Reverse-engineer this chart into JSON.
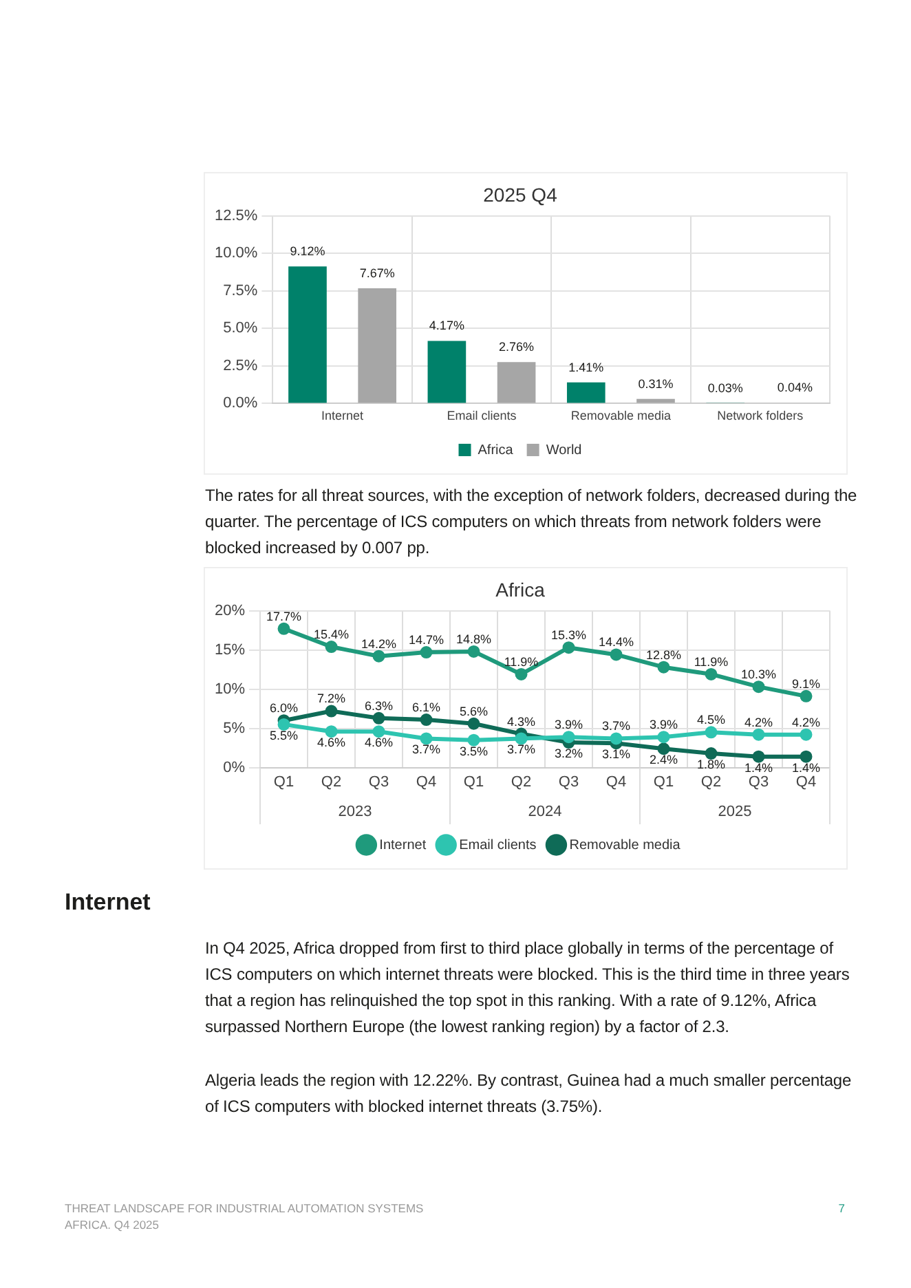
{
  "chart_data": [
    {
      "type": "bar",
      "title": "2025 Q4",
      "categories": [
        "Internet",
        "Email clients",
        "Removable media",
        "Network folders"
      ],
      "series": [
        {
          "name": "Africa",
          "color": "#00816a",
          "values": [
            9.12,
            4.17,
            1.41,
            0.03
          ],
          "value_labels": [
            "9.12%",
            "4.17%",
            "1.41%",
            "0.03%"
          ]
        },
        {
          "name": "World",
          "color": "#a6a6a6",
          "values": [
            7.67,
            2.76,
            0.31,
            0.04
          ],
          "value_labels": [
            "7.67%",
            "2.76%",
            "0.31%",
            "0.04%"
          ]
        }
      ],
      "ylim": [
        0,
        12.5
      ],
      "yticks": [
        {
          "value": 0,
          "label": "0.0%"
        },
        {
          "value": 2.5,
          "label": "2.5%"
        },
        {
          "value": 5,
          "label": "5.0%"
        },
        {
          "value": 7.5,
          "label": "7.5%"
        },
        {
          "value": 10,
          "label": "10.0%"
        },
        {
          "value": 12.5,
          "label": "12.5%"
        }
      ],
      "grid": true,
      "legend": "bottom",
      "annotations": [
        "The rates for all threat sources, with the exception of network folders, decreased during the quarter. The percentage of ICS computers on which threats from network folders were blocked increased by 0.007 pp.",
        "Internet",
        "In Q4 2025, Africa dropped from first to third place globally in terms of the percentage of ICS computers on which internet threats were blocked. This is the third time in three years that a region has relinquished the top spot in this ranking. With a rate of 9.12%, Africa surpassed Northern Europe (the lowest ranking region) by a factor of 2.3.",
        "Algeria leads the region with 12.22%. By contrast, Guinea had a much smaller percentage of ICS computers with blocked internet threats (3.75%).",
        "THREAT LANDSCAPE FOR INDUSTRIAL AUTOMATION SYSTEMS",
        "AFRICA. Q4 2025",
        "7"
      ]
    },
    {
      "type": "line",
      "title": "Africa",
      "categories": [
        "Q1",
        "Q2",
        "Q3",
        "Q4",
        "Q1",
        "Q2",
        "Q3",
        "Q4",
        "Q1",
        "Q2",
        "Q3",
        "Q4"
      ],
      "series": [
        {
          "name": "Internet",
          "color": "#1f9a7c",
          "values": [
            17.7,
            15.4,
            14.2,
            14.7,
            14.8,
            11.9,
            15.3,
            14.4,
            12.8,
            11.9,
            10.3,
            9.1
          ],
          "value_labels": [
            "17.7%",
            "15.4%",
            "14.2%",
            "14.7%",
            "14.8%",
            "11.9%",
            "15.3%",
            "14.4%",
            "12.8%",
            "11.9%",
            "10.3%",
            "9.1%"
          ]
        },
        {
          "name": "Email clients",
          "color": "#2ec4b0",
          "values": [
            5.5,
            4.6,
            4.6,
            3.7,
            3.5,
            3.7,
            3.9,
            3.7,
            3.9,
            4.5,
            4.2,
            4.2
          ],
          "value_labels": [
            "5.5%",
            "4.6%",
            "4.6%",
            "3.7%",
            "3.5%",
            "3.7%",
            "3.9%",
            "3.7%",
            "3.9%",
            "4.5%",
            "4.2%",
            "4.2%"
          ]
        },
        {
          "name": "Removable media",
          "color": "#0f6b57",
          "values": [
            6.0,
            7.2,
            6.3,
            6.1,
            5.6,
            4.3,
            3.2,
            3.1,
            2.4,
            1.8,
            1.4,
            1.4
          ],
          "value_labels": [
            "6.0%",
            "7.2%",
            "6.3%",
            "6.1%",
            "5.6%",
            "4.3%",
            "3.2%",
            "3.1%",
            "2.4%",
            "1.8%",
            "1.4%",
            "1.4%"
          ]
        }
      ],
      "ylim": [
        0,
        20
      ],
      "yticks": [
        {
          "value": 0,
          "label": "0%"
        },
        {
          "value": 5,
          "label": "5%"
        },
        {
          "value": 10,
          "label": "10%"
        },
        {
          "value": 15,
          "label": "15%"
        },
        {
          "value": 20,
          "label": "20%"
        }
      ],
      "grid": true,
      "legend": "bottom",
      "marker": "circle",
      "line_style": "solid",
      "annotations": [
        "2023",
        "2024",
        "2025"
      ]
    }
  ]
}
